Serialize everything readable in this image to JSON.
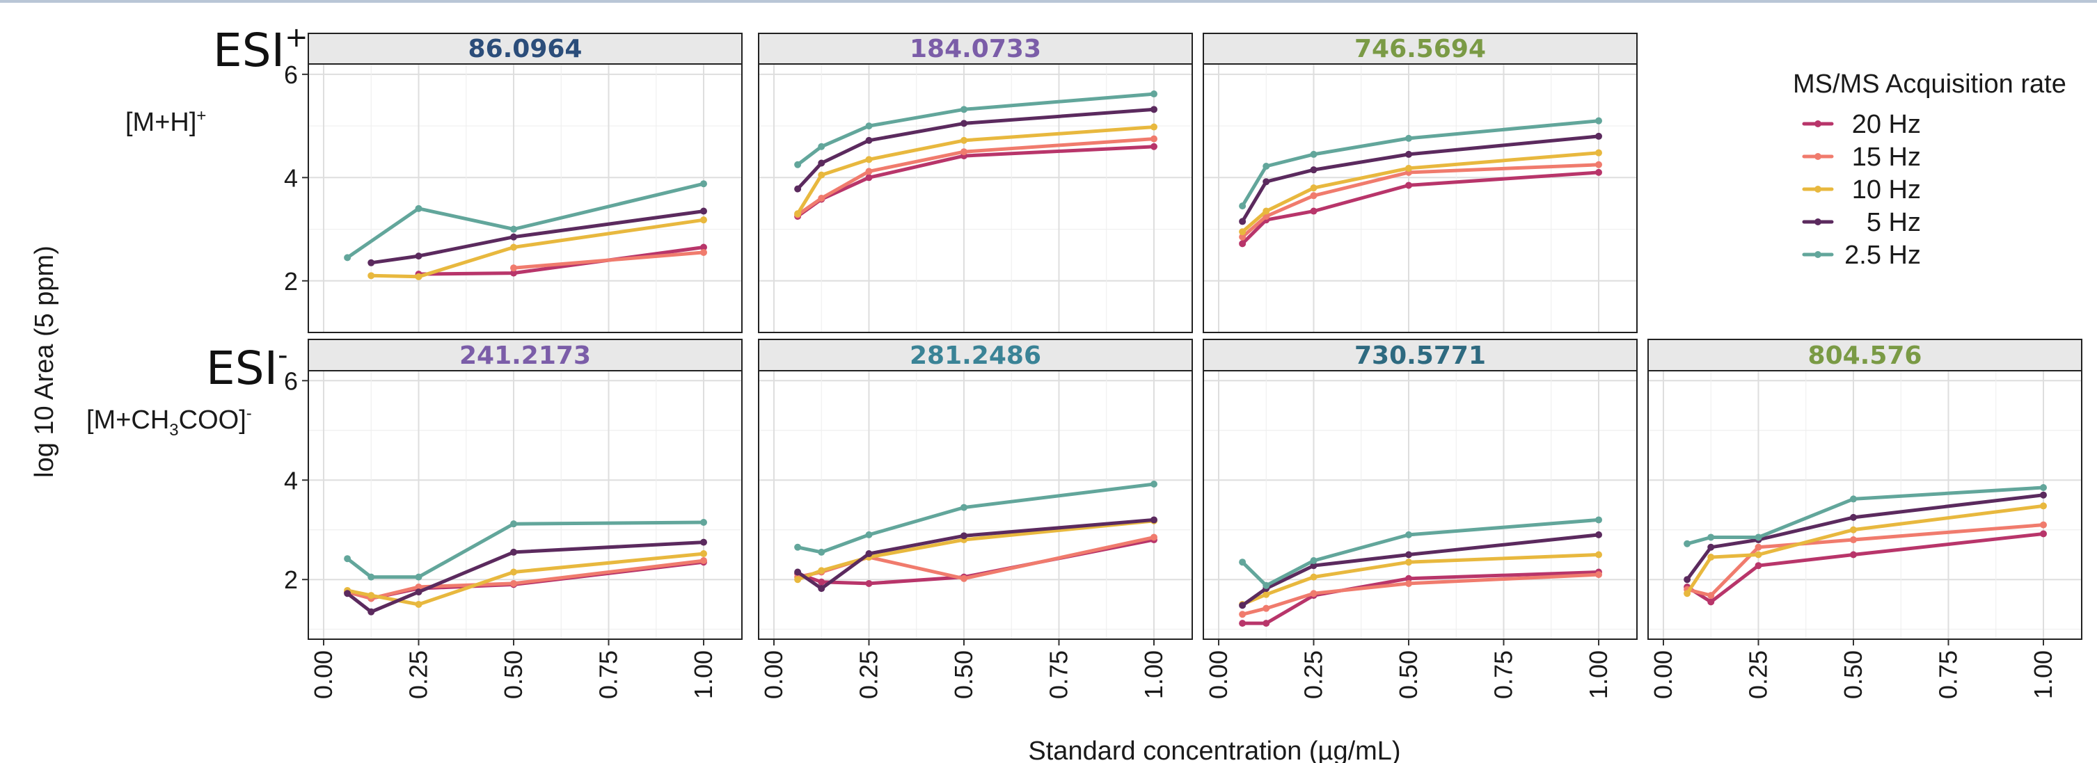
{
  "figure": {
    "y_axis_label": "log 10 Area (5 ppm)",
    "x_axis_label": "Standard concentration (µg/mL)",
    "rows": [
      {
        "mode_main": "ESI",
        "mode_sup": "+",
        "adduct_text": "[M+H]",
        "adduct_sub": "",
        "adduct_after": "",
        "adduct_sup": "+"
      },
      {
        "mode_main": "ESI",
        "mode_sup": "-",
        "adduct_text": "[M+CH",
        "adduct_sub": "3",
        "adduct_after": "COO]",
        "adduct_sup": "-"
      }
    ],
    "legend": {
      "title": "MS/MS Acquisition rate",
      "entries": [
        {
          "label": "20 Hz",
          "color": "#b8356a"
        },
        {
          "label": "15 Hz",
          "color": "#f07b6d"
        },
        {
          "label": "10 Hz",
          "color": "#e8b83e"
        },
        {
          "label": "5 Hz",
          "color": "#5b2a5e"
        },
        {
          "label": "2.5 Hz",
          "color": "#62a69b"
        }
      ]
    }
  },
  "chart_data": [
    {
      "type": "line",
      "title": "86.0964",
      "title_color": "#2b4d7a",
      "row": 0,
      "col": 0,
      "ylim": [
        1,
        6.2
      ],
      "xlim": [
        0,
        1
      ],
      "x_ticks": [
        "0.00",
        "0.25",
        "0.50",
        "0.75",
        "1.00"
      ],
      "y_ticks": [
        "2",
        "4",
        "6"
      ],
      "series": [
        {
          "name": "20 Hz",
          "x": [
            0.25,
            0.5,
            1.0
          ],
          "y": [
            2.13,
            2.15,
            2.65
          ]
        },
        {
          "name": "15 Hz",
          "x": [
            0.5,
            1.0
          ],
          "y": [
            2.25,
            2.55
          ]
        },
        {
          "name": "10 Hz",
          "x": [
            0.125,
            0.25,
            0.5,
            1.0
          ],
          "y": [
            2.1,
            2.08,
            2.65,
            3.18
          ]
        },
        {
          "name": "5 Hz",
          "x": [
            0.125,
            0.25,
            0.5,
            1.0
          ],
          "y": [
            2.35,
            2.48,
            2.85,
            3.35
          ]
        },
        {
          "name": "2.5 Hz",
          "x": [
            0.0625,
            0.25,
            0.5,
            1.0
          ],
          "y": [
            2.45,
            3.4,
            3.0,
            3.88
          ]
        }
      ]
    },
    {
      "type": "line",
      "title": "184.0733",
      "title_color": "#7b5da8",
      "row": 0,
      "col": 1,
      "ylim": [
        1,
        6.2
      ],
      "xlim": [
        0,
        1
      ],
      "x_ticks": [
        "0.00",
        "0.25",
        "0.50",
        "0.75",
        "1.00"
      ],
      "y_ticks": [
        "2",
        "4",
        "6"
      ],
      "series": [
        {
          "name": "20 Hz",
          "x": [
            0.0625,
            0.125,
            0.25,
            0.5,
            1.0
          ],
          "y": [
            3.25,
            3.58,
            4.0,
            4.42,
            4.6
          ]
        },
        {
          "name": "15 Hz",
          "x": [
            0.0625,
            0.125,
            0.25,
            0.5,
            1.0
          ],
          "y": [
            3.28,
            3.6,
            4.12,
            4.5,
            4.75
          ]
        },
        {
          "name": "10 Hz",
          "x": [
            0.0625,
            0.125,
            0.25,
            0.5,
            1.0
          ],
          "y": [
            3.3,
            4.05,
            4.35,
            4.72,
            4.98
          ]
        },
        {
          "name": "5 Hz",
          "x": [
            0.0625,
            0.125,
            0.25,
            0.5,
            1.0
          ],
          "y": [
            3.78,
            4.28,
            4.72,
            5.05,
            5.32
          ]
        },
        {
          "name": "2.5 Hz",
          "x": [
            0.0625,
            0.125,
            0.25,
            0.5,
            1.0
          ],
          "y": [
            4.25,
            4.6,
            5.0,
            5.32,
            5.62
          ]
        }
      ]
    },
    {
      "type": "line",
      "title": "746.5694",
      "title_color": "#7a9a45",
      "row": 0,
      "col": 2,
      "ylim": [
        1,
        6.2
      ],
      "xlim": [
        0,
        1
      ],
      "x_ticks": [
        "0.00",
        "0.25",
        "0.50",
        "0.75",
        "1.00"
      ],
      "y_ticks": [
        "2",
        "4",
        "6"
      ],
      "series": [
        {
          "name": "20 Hz",
          "x": [
            0.0625,
            0.125,
            0.25,
            0.5,
            1.0
          ],
          "y": [
            2.72,
            3.18,
            3.35,
            3.85,
            4.1
          ]
        },
        {
          "name": "15 Hz",
          "x": [
            0.0625,
            0.125,
            0.25,
            0.5,
            1.0
          ],
          "y": [
            2.85,
            3.25,
            3.65,
            4.1,
            4.25
          ]
        },
        {
          "name": "10 Hz",
          "x": [
            0.0625,
            0.125,
            0.25,
            0.5,
            1.0
          ],
          "y": [
            2.95,
            3.35,
            3.8,
            4.18,
            4.48
          ]
        },
        {
          "name": "5 Hz",
          "x": [
            0.0625,
            0.125,
            0.25,
            0.5,
            1.0
          ],
          "y": [
            3.15,
            3.92,
            4.15,
            4.45,
            4.8
          ]
        },
        {
          "name": "2.5 Hz",
          "x": [
            0.0625,
            0.125,
            0.25,
            0.5,
            1.0
          ],
          "y": [
            3.45,
            4.22,
            4.45,
            4.76,
            5.1
          ]
        }
      ]
    },
    {
      "type": "line",
      "title": "241.2173",
      "title_color": "#7b5da8",
      "row": 1,
      "col": 0,
      "ylim": [
        0.8,
        6.2
      ],
      "xlim": [
        0,
        1
      ],
      "x_ticks": [
        "0.00",
        "0.25",
        "0.50",
        "0.75",
        "1.00"
      ],
      "y_ticks": [
        "2",
        "4",
        "6"
      ],
      "series": [
        {
          "name": "20 Hz",
          "x": [
            0.0625,
            0.125,
            0.25,
            0.5,
            1.0
          ],
          "y": [
            1.75,
            1.62,
            1.82,
            1.9,
            2.35
          ]
        },
        {
          "name": "15 Hz",
          "x": [
            0.0625,
            0.125,
            0.25,
            0.5,
            1.0
          ],
          "y": [
            1.75,
            1.62,
            1.85,
            1.92,
            2.38
          ]
        },
        {
          "name": "10 Hz",
          "x": [
            0.0625,
            0.125,
            0.25,
            0.5,
            1.0
          ],
          "y": [
            1.78,
            1.68,
            1.5,
            2.15,
            2.52
          ]
        },
        {
          "name": "5 Hz",
          "x": [
            0.0625,
            0.125,
            0.25,
            0.5,
            1.0
          ],
          "y": [
            1.72,
            1.35,
            1.75,
            2.55,
            2.75
          ]
        },
        {
          "name": "2.5 Hz",
          "x": [
            0.0625,
            0.125,
            0.25,
            0.5,
            1.0
          ],
          "y": [
            2.42,
            2.05,
            2.05,
            3.12,
            3.15
          ]
        }
      ]
    },
    {
      "type": "line",
      "title": "281.2486",
      "title_color": "#3a8396",
      "row": 1,
      "col": 1,
      "ylim": [
        0.8,
        6.2
      ],
      "xlim": [
        0,
        1
      ],
      "x_ticks": [
        "0.00",
        "0.25",
        "0.50",
        "0.75",
        "1.00"
      ],
      "y_ticks": [
        "2",
        "4",
        "6"
      ],
      "series": [
        {
          "name": "20 Hz",
          "x": [
            0.0625,
            0.125,
            0.25,
            0.5,
            1.0
          ],
          "y": [
            2.12,
            1.95,
            1.92,
            2.05,
            2.8
          ]
        },
        {
          "name": "15 Hz",
          "x": [
            0.0625,
            0.125,
            0.25,
            0.5,
            1.0
          ],
          "y": [
            2.05,
            2.15,
            2.45,
            2.02,
            2.85
          ]
        },
        {
          "name": "10 Hz",
          "x": [
            0.0625,
            0.125,
            0.25,
            0.5,
            1.0
          ],
          "y": [
            2.0,
            2.18,
            2.45,
            2.8,
            3.18
          ]
        },
        {
          "name": "5 Hz",
          "x": [
            0.0625,
            0.125,
            0.25,
            0.5,
            1.0
          ],
          "y": [
            2.15,
            1.82,
            2.52,
            2.88,
            3.2
          ]
        },
        {
          "name": "2.5 Hz",
          "x": [
            0.0625,
            0.125,
            0.25,
            0.5,
            1.0
          ],
          "y": [
            2.65,
            2.55,
            2.9,
            3.45,
            3.92
          ]
        }
      ]
    },
    {
      "type": "line",
      "title": "730.5771",
      "title_color": "#2e6a80",
      "row": 1,
      "col": 2,
      "ylim": [
        0.8,
        6.2
      ],
      "xlim": [
        0,
        1
      ],
      "x_ticks": [
        "0.00",
        "0.25",
        "0.50",
        "0.75",
        "1.00"
      ],
      "y_ticks": [
        "2",
        "4",
        "6"
      ],
      "series": [
        {
          "name": "20 Hz",
          "x": [
            0.0625,
            0.125,
            0.25,
            0.5,
            1.0
          ],
          "y": [
            1.12,
            1.12,
            1.68,
            2.02,
            2.15
          ]
        },
        {
          "name": "15 Hz",
          "x": [
            0.0625,
            0.125,
            0.25,
            0.5,
            1.0
          ],
          "y": [
            1.3,
            1.42,
            1.72,
            1.92,
            2.1
          ]
        },
        {
          "name": "10 Hz",
          "x": [
            0.0625,
            0.125,
            0.25,
            0.5,
            1.0
          ],
          "y": [
            1.5,
            1.7,
            2.05,
            2.35,
            2.5
          ]
        },
        {
          "name": "5 Hz",
          "x": [
            0.0625,
            0.125,
            0.25,
            0.5,
            1.0
          ],
          "y": [
            1.48,
            1.82,
            2.28,
            2.5,
            2.9
          ]
        },
        {
          "name": "2.5 Hz",
          "x": [
            0.0625,
            0.125,
            0.25,
            0.5,
            1.0
          ],
          "y": [
            2.35,
            1.88,
            2.38,
            2.9,
            3.2
          ]
        }
      ]
    },
    {
      "type": "line",
      "title": "804.576",
      "title_color": "#7a9a45",
      "row": 1,
      "col": 3,
      "ylim": [
        0.8,
        6.2
      ],
      "xlim": [
        0,
        1
      ],
      "x_ticks": [
        "0.00",
        "0.25",
        "0.50",
        "0.75",
        "1.00"
      ],
      "y_ticks": [
        "2",
        "4",
        "6"
      ],
      "series": [
        {
          "name": "20 Hz",
          "x": [
            0.0625,
            0.125,
            0.25,
            0.5,
            1.0
          ],
          "y": [
            1.85,
            1.55,
            2.28,
            2.5,
            2.92
          ]
        },
        {
          "name": "15 Hz",
          "x": [
            0.0625,
            0.125,
            0.25,
            0.5,
            1.0
          ],
          "y": [
            1.8,
            1.68,
            2.65,
            2.8,
            3.1
          ]
        },
        {
          "name": "10 Hz",
          "x": [
            0.0625,
            0.125,
            0.25,
            0.5,
            1.0
          ],
          "y": [
            1.72,
            2.45,
            2.5,
            3.0,
            3.48
          ]
        },
        {
          "name": "5 Hz",
          "x": [
            0.0625,
            0.125,
            0.25,
            0.5,
            1.0
          ],
          "y": [
            2.0,
            2.65,
            2.8,
            3.25,
            3.7
          ]
        },
        {
          "name": "2.5 Hz",
          "x": [
            0.0625,
            0.125,
            0.25,
            0.5,
            1.0
          ],
          "y": [
            2.72,
            2.85,
            2.85,
            3.62,
            3.85
          ]
        }
      ]
    }
  ]
}
